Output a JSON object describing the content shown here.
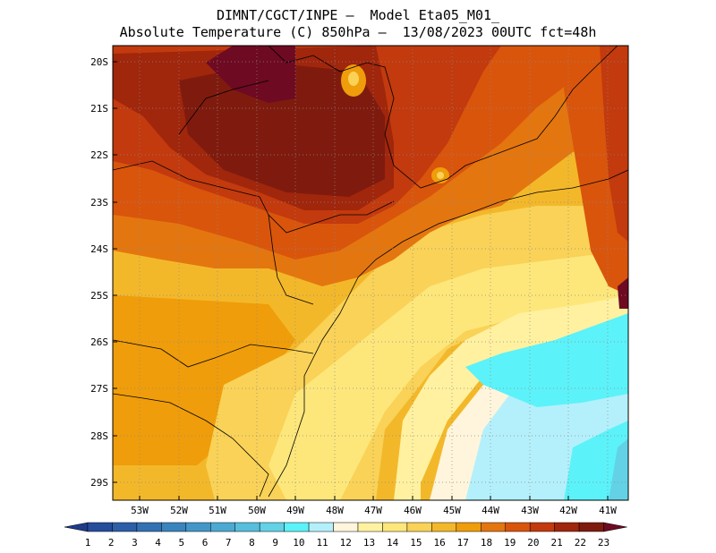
{
  "title_line1": "DIMNT/CGCT/INPE —  Model Eta05_M01_",
  "title_line2": "Absolute Temperature (C) 850hPa —  13/08/2023 00UTC fct=48h",
  "lat_labels": [
    "20S",
    "21S",
    "22S",
    "23S",
    "24S",
    "25S",
    "26S",
    "27S",
    "28S",
    "29S"
  ],
  "lon_labels": [
    "53W",
    "52W",
    "51W",
    "50W",
    "49W",
    "48W",
    "47W",
    "46W",
    "45W",
    "44W",
    "43W",
    "42W",
    "41W"
  ],
  "colorbar": {
    "labels": [
      "1",
      "2",
      "3",
      "4",
      "5",
      "6",
      "7",
      "8",
      "9",
      "10",
      "11",
      "12",
      "13",
      "14",
      "15",
      "16",
      "17",
      "18",
      "19",
      "20",
      "21",
      "22",
      "23"
    ],
    "colors": [
      "#1f3b8a",
      "#254d9c",
      "#2c5fa8",
      "#3271b3",
      "#3a84be",
      "#4397c8",
      "#4caad2",
      "#57bedc",
      "#63d2e6",
      "#5cf2f9",
      "#b4f0fb",
      "#fff5dc",
      "#fff1a0",
      "#fde77a",
      "#f9d257",
      "#f3b82a",
      "#ef9d0a",
      "#e4760f",
      "#d9550c",
      "#c23a0d",
      "#a0260c",
      "#7f1b0e",
      "#6e0a22"
    ]
  }
}
